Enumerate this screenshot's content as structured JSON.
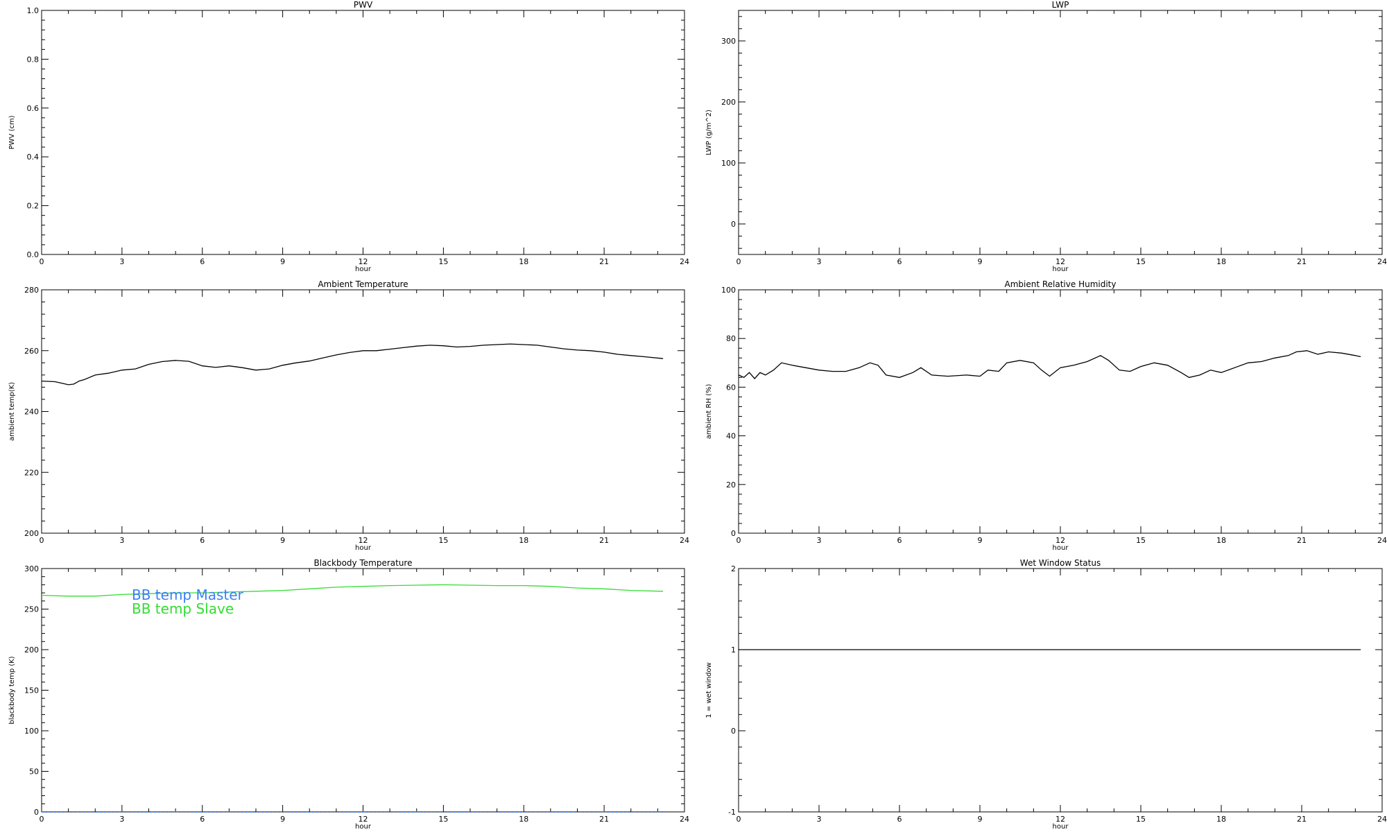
{
  "chart_data": [
    {
      "type": "line",
      "title": "PWV",
      "xlabel": "hour",
      "ylabel": "PWV (cm)",
      "xlim": [
        0,
        24
      ],
      "ylim": [
        0,
        1.0
      ],
      "xticks": [
        "0",
        "3",
        "6",
        "9",
        "12",
        "15",
        "18",
        "21",
        "24"
      ],
      "yticks": [
        "0.0",
        "0.2",
        "0.4",
        "0.6",
        "0.8",
        "1.0"
      ],
      "grid": false,
      "series": []
    },
    {
      "type": "line",
      "title": "LWP",
      "xlabel": "hour",
      "ylabel": "LWP (g/m^2)",
      "xlim": [
        0,
        24
      ],
      "ylim": [
        -50,
        350
      ],
      "xticks": [
        "0",
        "3",
        "6",
        "9",
        "12",
        "15",
        "18",
        "21",
        "24"
      ],
      "yticks": [
        "0",
        "100",
        "200",
        "300"
      ],
      "ytick_values": [
        0,
        100,
        200,
        300
      ],
      "grid": false,
      "series": []
    },
    {
      "type": "line",
      "title": "Ambient Temperature",
      "xlabel": "hour",
      "ylabel": "ambient temp(K)",
      "xlim": [
        0,
        24
      ],
      "ylim": [
        200,
        280
      ],
      "xticks": [
        "0",
        "3",
        "6",
        "9",
        "12",
        "15",
        "18",
        "21",
        "24"
      ],
      "yticks": [
        "200",
        "220",
        "240",
        "260",
        "280"
      ],
      "grid": false,
      "series": [
        {
          "color": "#000000",
          "x": [
            0,
            0.5,
            0.8,
            1.0,
            1.2,
            1.4,
            1.6,
            2.0,
            2.5,
            3.0,
            3.5,
            4.0,
            4.5,
            5.0,
            5.5,
            6.0,
            6.5,
            7.0,
            7.5,
            8.0,
            8.5,
            9.0,
            9.5,
            10.0,
            10.5,
            11.0,
            11.5,
            12.0,
            12.5,
            13.0,
            13.5,
            14.0,
            14.5,
            15.0,
            15.5,
            16.0,
            16.5,
            17.0,
            17.5,
            18.0,
            18.5,
            19.0,
            19.5,
            20.0,
            20.5,
            21.0,
            21.5,
            22.0,
            22.5,
            23.2
          ],
          "y": [
            250,
            249.8,
            249.2,
            248.8,
            249.0,
            250.0,
            250.5,
            252,
            252.6,
            253.6,
            254.0,
            255.5,
            256.4,
            256.8,
            256.5,
            255.0,
            254.5,
            255.0,
            254.4,
            253.6,
            254.0,
            255.2,
            256.0,
            256.6,
            257.6,
            258.6,
            259.4,
            260.0,
            260.0,
            260.5,
            261.0,
            261.5,
            261.8,
            261.6,
            261.2,
            261.4,
            261.8,
            262.0,
            262.2,
            262.0,
            261.8,
            261.2,
            260.6,
            260.2,
            260.0,
            259.5,
            258.8,
            258.4,
            258.0,
            257.4
          ]
        }
      ]
    },
    {
      "type": "line",
      "title": "Ambient Relative Humidity",
      "xlabel": "hour",
      "ylabel": "ambient RH (%)",
      "xlim": [
        0,
        24
      ],
      "ylim": [
        0,
        100
      ],
      "xticks": [
        "0",
        "3",
        "6",
        "9",
        "12",
        "15",
        "18",
        "21",
        "24"
      ],
      "yticks": [
        "0",
        "20",
        "40",
        "60",
        "80",
        "100"
      ],
      "grid": false,
      "series": [
        {
          "color": "#000000",
          "x": [
            0,
            0.2,
            0.4,
            0.6,
            0.8,
            1.0,
            1.3,
            1.6,
            2.0,
            2.5,
            3.0,
            3.5,
            4.0,
            4.5,
            4.9,
            5.2,
            5.5,
            6.0,
            6.5,
            6.8,
            7.2,
            7.8,
            8.5,
            9.0,
            9.3,
            9.7,
            10.0,
            10.5,
            11.0,
            11.3,
            11.6,
            12.0,
            12.5,
            13.0,
            13.5,
            13.8,
            14.2,
            14.6,
            15.0,
            15.5,
            16.0,
            16.5,
            16.8,
            17.2,
            17.6,
            18.0,
            18.5,
            19.0,
            19.5,
            20.0,
            20.5,
            20.8,
            21.2,
            21.6,
            22.0,
            22.5,
            23.0,
            23.2
          ],
          "y": [
            65,
            64,
            66,
            63.5,
            66,
            65,
            67,
            70,
            69,
            68,
            67,
            66.5,
            66.5,
            68,
            70,
            69,
            65,
            64,
            66,
            68,
            65,
            64.5,
            65,
            64.5,
            67,
            66.5,
            70,
            71,
            70,
            67,
            64.5,
            68,
            69,
            70.5,
            73,
            71,
            67,
            66.5,
            68.5,
            70,
            69,
            66,
            64,
            65,
            67,
            66,
            68,
            70,
            70.5,
            72,
            73,
            74.5,
            75,
            73.5,
            74.5,
            74,
            73,
            72.5
          ]
        }
      ]
    },
    {
      "type": "line",
      "title": "Blackbody Temperature",
      "xlabel": "hour",
      "ylabel": "blackbody temp (K)",
      "xlim": [
        0,
        24
      ],
      "ylim": [
        0,
        300
      ],
      "xticks": [
        "0",
        "3",
        "6",
        "9",
        "12",
        "15",
        "18",
        "21",
        "24"
      ],
      "yticks": [
        "0",
        "50",
        "100",
        "150",
        "200",
        "250",
        "300"
      ],
      "grid": false,
      "legend_position": "top-left",
      "series": [
        {
          "name": "BB temp Master",
          "color": "#3a7ff5",
          "x": [
            0,
            3,
            6,
            9,
            12,
            15,
            18,
            21,
            23.2
          ],
          "y": [
            0,
            0,
            0,
            0,
            0,
            0,
            0,
            0,
            0
          ]
        },
        {
          "name": "BB temp Slave",
          "color": "#33dd33",
          "x": [
            0,
            1,
            2,
            3,
            4,
            5,
            6,
            7,
            8,
            9,
            10,
            11,
            12,
            13,
            14,
            15,
            16,
            17,
            18,
            19,
            20,
            21,
            22,
            23.2
          ],
          "y": [
            267,
            266,
            266,
            268,
            269,
            270,
            270,
            271,
            272,
            273,
            275,
            277,
            278,
            279,
            279.5,
            280,
            279.5,
            279,
            279,
            278,
            276,
            275,
            273,
            272
          ]
        }
      ]
    },
    {
      "type": "line",
      "title": "Wet Window Status",
      "xlabel": "hour",
      "ylabel": "1 = wet window",
      "xlim": [
        0,
        24
      ],
      "ylim": [
        -1,
        2
      ],
      "xticks": [
        "0",
        "3",
        "6",
        "9",
        "12",
        "15",
        "18",
        "21",
        "24"
      ],
      "yticks": [
        "-1",
        "0",
        "1",
        "2"
      ],
      "grid": false,
      "series": [
        {
          "color": "#000000",
          "x": [
            0,
            23.2
          ],
          "y": [
            1,
            1
          ]
        }
      ]
    }
  ]
}
